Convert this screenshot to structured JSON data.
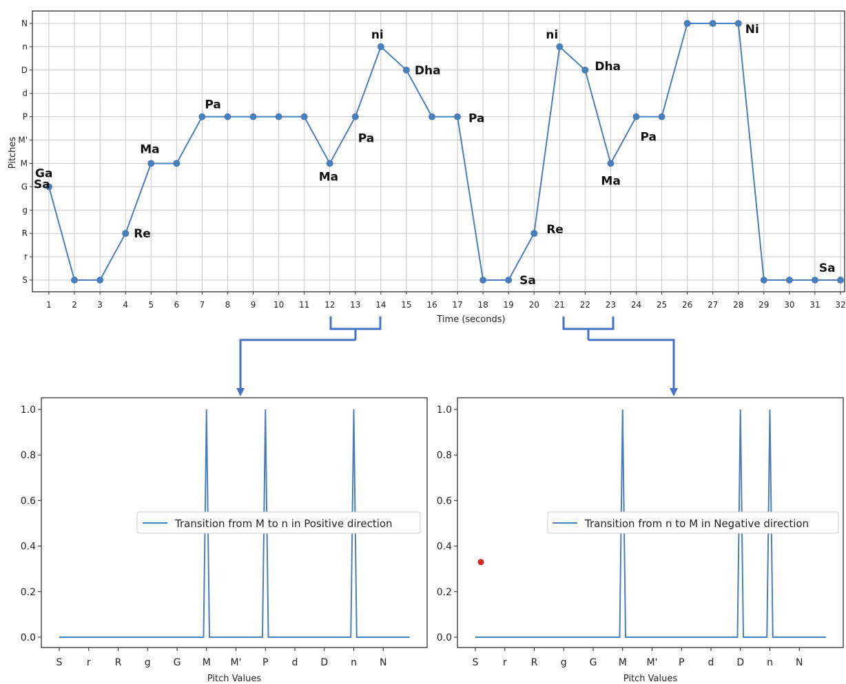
{
  "colors": {
    "line": "#4a7ebb",
    "grid": "#c8c8c8",
    "connector": "#4472c4",
    "marker": "#d62728"
  },
  "chart_data": [
    {
      "type": "line",
      "xlabel": "Time (seconds)",
      "ylabel": "Pitches",
      "pitch_levels": [
        "S",
        "r",
        "R",
        "g",
        "G",
        "M",
        "M'",
        "P",
        "d",
        "D",
        "n",
        "N"
      ],
      "x": [
        1,
        2,
        3,
        4,
        5,
        6,
        7,
        8,
        9,
        10,
        11,
        12,
        13,
        14,
        15,
        16,
        17,
        18,
        19,
        20,
        21,
        22,
        23,
        24,
        25,
        26,
        27,
        28,
        29,
        30,
        31,
        32
      ],
      "y": [
        "G",
        "S",
        "S",
        "R",
        "M",
        "M",
        "P",
        "P",
        "P",
        "P",
        "P",
        "M",
        "P",
        "n",
        "D",
        "P",
        "P",
        "S",
        "S",
        "R",
        "n",
        "D",
        "M",
        "P",
        "P",
        "N",
        "N",
        "N",
        "S",
        "S",
        "S",
        "S"
      ],
      "grid": true,
      "annotations": [
        {
          "x": 1,
          "text": "Ga"
        },
        {
          "x": 1,
          "text": "Sa"
        },
        {
          "x": 4,
          "text": "Re"
        },
        {
          "x": 5,
          "text": "Ma"
        },
        {
          "x": 7,
          "text": "Pa"
        },
        {
          "x": 12,
          "text": "Ma"
        },
        {
          "x": 13,
          "text": "Pa"
        },
        {
          "x": 14,
          "text": "ni"
        },
        {
          "x": 15,
          "text": "Dha"
        },
        {
          "x": 17,
          "text": "Pa"
        },
        {
          "x": 19,
          "text": "Sa"
        },
        {
          "x": 20,
          "text": "Re"
        },
        {
          "x": 21,
          "text": "ni"
        },
        {
          "x": 22,
          "text": "Dha"
        },
        {
          "x": 23,
          "text": "Ma"
        },
        {
          "x": 24,
          "text": "Pa"
        },
        {
          "x": 28,
          "text": "Ni"
        },
        {
          "x": 31,
          "text": "Sa"
        }
      ],
      "brackets": [
        {
          "from": 12,
          "to": 14
        },
        {
          "from": 21,
          "to": 23
        }
      ]
    },
    {
      "type": "line",
      "xlabel": "Pitch Values",
      "ylabel": "",
      "categories": [
        "S",
        "r",
        "R",
        "g",
        "G",
        "M",
        "M'",
        "P",
        "d",
        "D",
        "n",
        "N"
      ],
      "ylim": [
        0,
        1.0
      ],
      "yticks": [
        "0.0",
        "0.2",
        "0.4",
        "0.6",
        "0.8",
        "1.0"
      ],
      "series": [
        {
          "name": "Transition from M to n in Positive direction",
          "peaks": [
            "M",
            "P",
            "n"
          ]
        }
      ],
      "legend": "center-right"
    },
    {
      "type": "line",
      "xlabel": "Pitch Values",
      "ylabel": "",
      "categories": [
        "S",
        "r",
        "R",
        "g",
        "G",
        "M",
        "M'",
        "P",
        "d",
        "D",
        "n",
        "N"
      ],
      "ylim": [
        0,
        1.0
      ],
      "yticks": [
        "0.0",
        "0.2",
        "0.4",
        "0.6",
        "0.8",
        "1.0"
      ],
      "series": [
        {
          "name": "Transition from n to M in Negative direction",
          "peaks": [
            "M",
            "D",
            "n"
          ]
        }
      ],
      "extra_point": {
        "x": "S",
        "y": 0.33
      },
      "legend": "center-right"
    }
  ]
}
